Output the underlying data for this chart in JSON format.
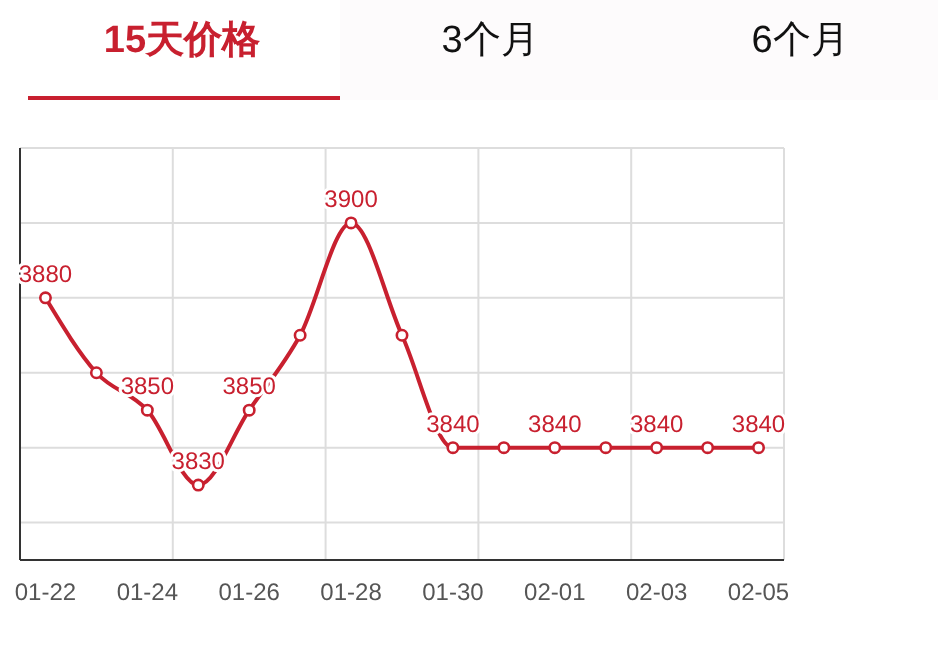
{
  "chart_data": {
    "type": "line",
    "title": "15天价格",
    "annotations": [
      "3个月",
      "6个月"
    ],
    "categories": [
      "01-22",
      null,
      "01-24",
      null,
      "01-26",
      null,
      "01-28",
      null,
      "01-30",
      null,
      "02-01",
      null,
      "02-03",
      null,
      "02-05"
    ],
    "series": [
      {
        "color": "#c8202f",
        "values": [
          3880,
          3860,
          3850,
          3830,
          3850,
          3870,
          3900,
          3870,
          3840,
          3840,
          3840,
          3840,
          3840,
          3840,
          3840
        ],
        "value_labels": [
          "3880",
          null,
          "3850",
          "3830",
          "3850",
          null,
          "3900",
          null,
          "3840",
          null,
          "3840",
          null,
          "3840",
          null,
          "3840"
        ]
      }
    ],
    "ylim": [
      3810,
      3920
    ],
    "yticks": [
      {
        "value": 3820,
        "label": null
      },
      {
        "value": 3840,
        "label": null
      },
      {
        "value": 3860,
        "label": null
      },
      {
        "value": 3880,
        "label": null
      },
      {
        "value": 3900,
        "label": null
      },
      {
        "value": 3920,
        "label": null
      }
    ],
    "tick_labels": "x",
    "grid": true,
    "marker": "circle",
    "line_style": "solid"
  }
}
